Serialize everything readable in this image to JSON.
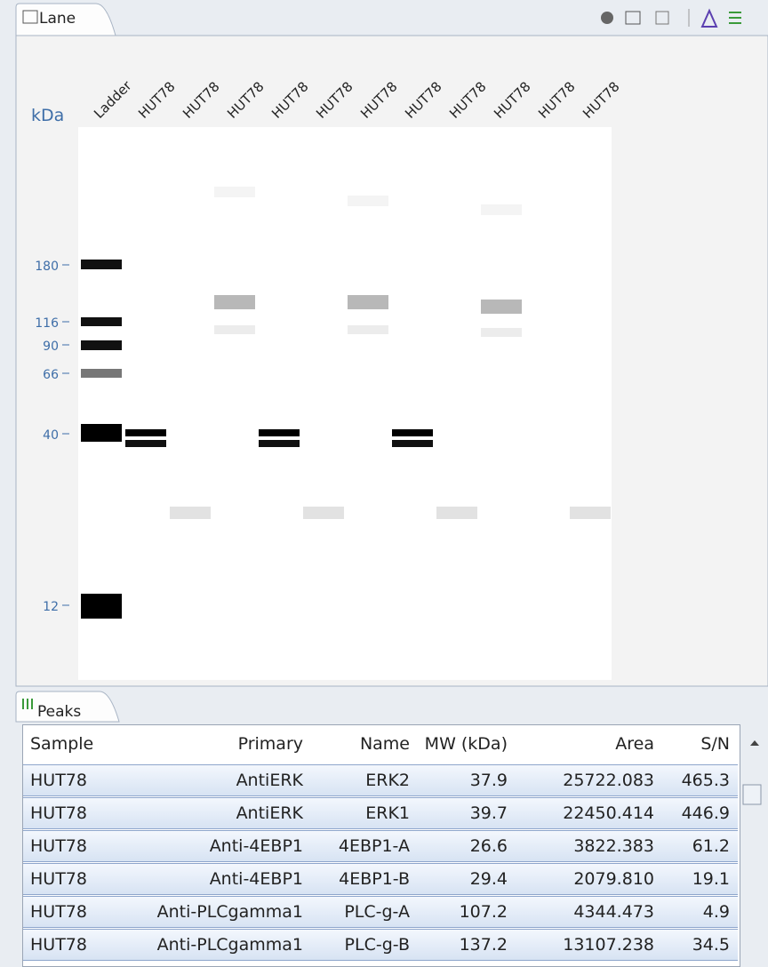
{
  "lane_panel": {
    "tab": "Lane",
    "axis_label": "kDa",
    "lanes": [
      "Ladder",
      "HUT78",
      "HUT78",
      "HUT78",
      "HUT78",
      "HUT78",
      "HUT78",
      "HUT78",
      "HUT78",
      "HUT78",
      "HUT78",
      "HUT78"
    ],
    "markers": [
      "180",
      "116",
      "90",
      "66",
      "40",
      "12"
    ]
  },
  "peaks_panel": {
    "tab": "Peaks",
    "table": {
      "columns": [
        "Sample",
        "Primary",
        "Name",
        "MW (kDa)",
        "Area",
        "S/N"
      ],
      "rows": [
        [
          "HUT78",
          "AntiERK",
          "ERK2",
          "37.9",
          "25722.083",
          "465.3"
        ],
        [
          "HUT78",
          "AntiERK",
          "ERK1",
          "39.7",
          "22450.414",
          "446.9"
        ],
        [
          "HUT78",
          "Anti-4EBP1",
          "4EBP1-A",
          "26.6",
          "3822.383",
          "61.2"
        ],
        [
          "HUT78",
          "Anti-4EBP1",
          "4EBP1-B",
          "29.4",
          "2079.810",
          "19.1"
        ],
        [
          "HUT78",
          "Anti-PLCgamma1",
          "PLC-g-A",
          "107.2",
          "4344.473",
          "4.9"
        ],
        [
          "HUT78",
          "Anti-PLCgamma1",
          "PLC-g-B",
          "137.2",
          "13107.238",
          "34.5"
        ]
      ]
    }
  }
}
